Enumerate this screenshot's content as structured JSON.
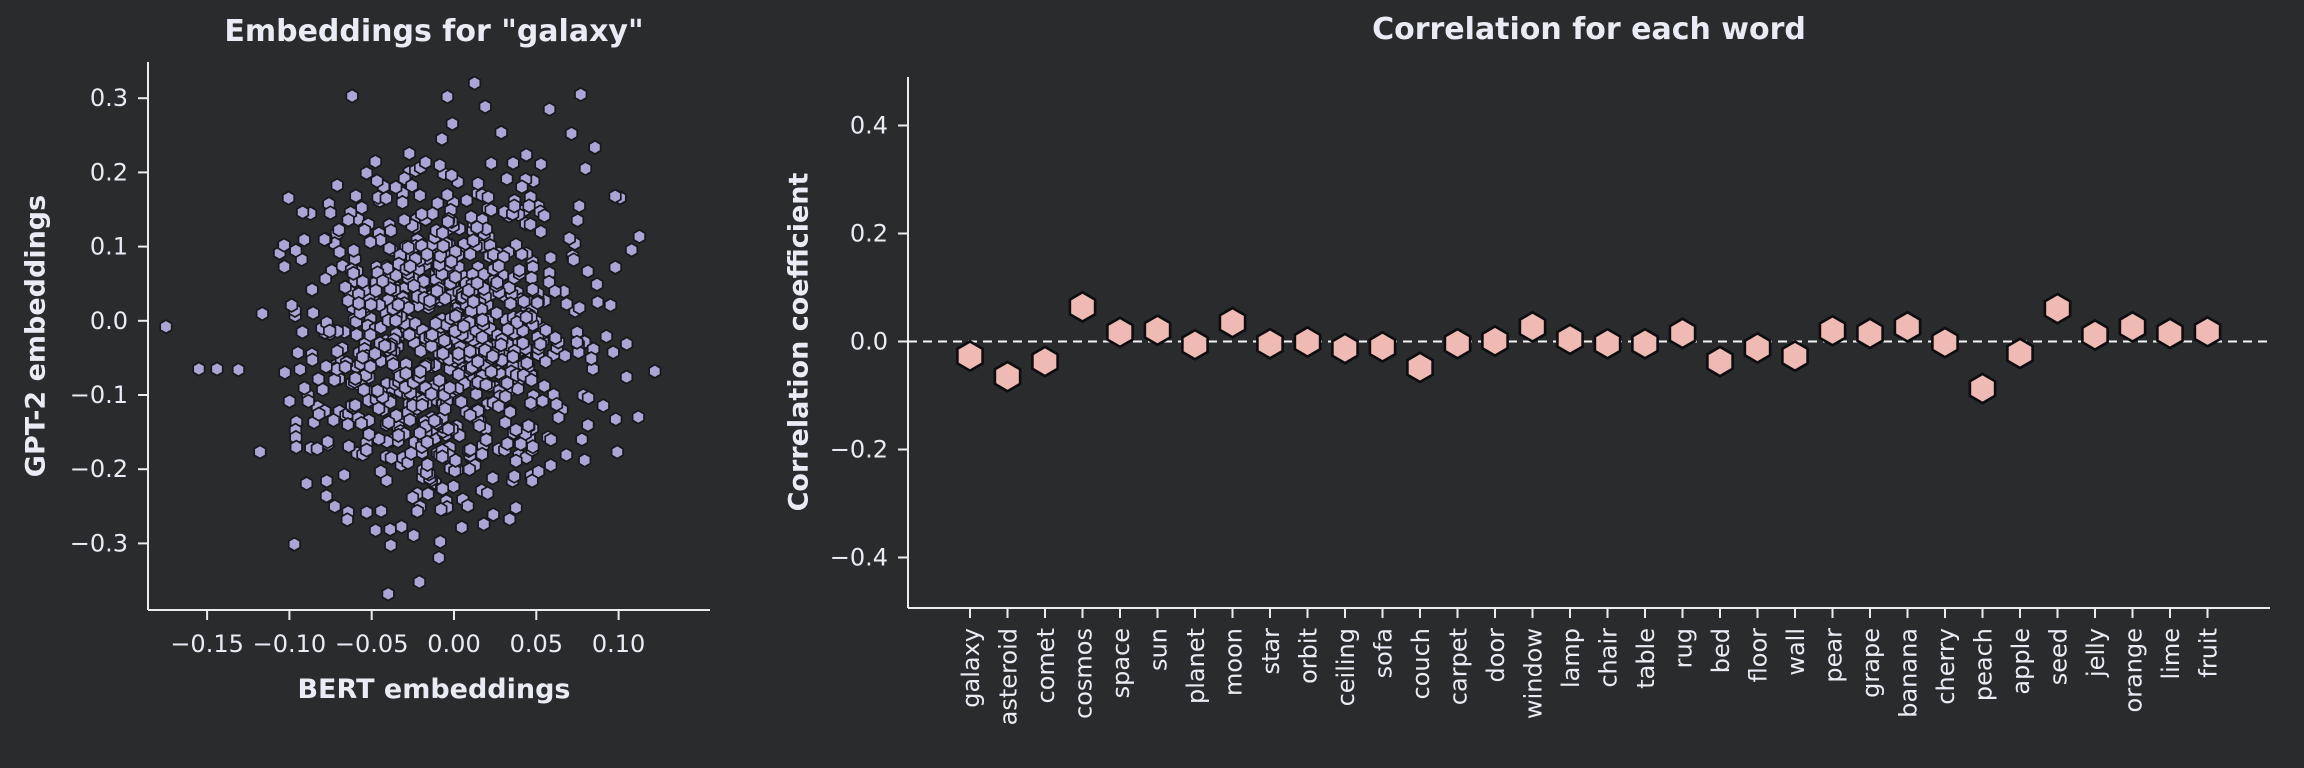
{
  "figure": {
    "background": "#2a2b2c",
    "text_color": "#e9ecf4",
    "axis_color": "#ebecef"
  },
  "chart_data": [
    {
      "type": "scatter",
      "title": "Embeddings for \"galaxy\"",
      "xlabel": "BERT embeddings",
      "ylabel": "GPT-2 embeddings",
      "xticks": [
        -0.15,
        -0.1,
        -0.05,
        0.0,
        0.05,
        0.1
      ],
      "xtick_labels": [
        "−0.15",
        "−0.10",
        "−0.05",
        "0.00",
        "0.05",
        "0.10"
      ],
      "yticks": [
        0.3,
        0.2,
        0.1,
        0.0,
        -0.1,
        -0.2,
        -0.3
      ],
      "ytick_labels": [
        "0.3",
        "0.2",
        "0.1",
        "0.0",
        "−0.1",
        "−0.2",
        "−0.3"
      ],
      "xlim": [
        -0.186,
        0.155
      ],
      "ylim": [
        -0.39,
        0.35
      ],
      "grid": false,
      "marker": {
        "shape": "hexagon",
        "fill": "#a9a6d6",
        "stroke": "#17171c",
        "radius": 6.6
      },
      "distribution": {
        "n": 940,
        "seed": 7,
        "mean": [
          -0.006,
          -0.02
        ],
        "std": [
          0.043,
          0.118
        ],
        "note": "dense gaussian blob of ~1000 embedding dimension points"
      },
      "outliers": [
        [
          -0.175,
          -0.008
        ],
        [
          -0.155,
          -0.065
        ],
        [
          -0.144,
          -0.065
        ],
        [
          -0.131,
          -0.066
        ],
        [
          0.122,
          -0.068
        ],
        [
          -0.04,
          -0.368
        ],
        [
          -0.021,
          -0.352
        ],
        [
          0.077,
          0.305
        ],
        [
          -0.004,
          0.302
        ],
        [
          0.058,
          0.285
        ]
      ]
    },
    {
      "type": "scatter",
      "title": "Correlation for each word",
      "xlabel": "",
      "ylabel": "Correlation coefficient",
      "yticks": [
        0.4,
        0.2,
        0.0,
        -0.2,
        -0.4
      ],
      "ytick_labels": [
        "0.4",
        "0.2",
        "0.0",
        "−0.2",
        "−0.4"
      ],
      "ylim": [
        -0.49,
        0.49
      ],
      "grid": false,
      "zero_line": {
        "style": "dashed",
        "color": "#f4f4f6",
        "y": 0.0
      },
      "marker": {
        "shape": "hexagon",
        "fill": "#efb9b4",
        "stroke": "#0d0d0f",
        "radius": 14.6
      },
      "categories": [
        "galaxy",
        "asteroid",
        "comet",
        "cosmos",
        "space",
        "sun",
        "planet",
        "moon",
        "star",
        "orbit",
        "ceiling",
        "sofa",
        "couch",
        "carpet",
        "door",
        "window",
        "lamp",
        "chair",
        "table",
        "rug",
        "bed",
        "floor",
        "wall",
        "pear",
        "grape",
        "banana",
        "cherry",
        "peach",
        "apple",
        "seed",
        "jelly",
        "orange",
        "lime",
        "fruit"
      ],
      "values": [
        -0.027,
        -0.065,
        -0.037,
        0.064,
        0.017,
        0.021,
        -0.006,
        0.035,
        -0.004,
        -0.001,
        -0.013,
        -0.01,
        -0.048,
        -0.004,
        0.001,
        0.027,
        0.004,
        -0.004,
        -0.004,
        0.015,
        -0.037,
        -0.012,
        -0.027,
        0.02,
        0.015,
        0.027,
        -0.002,
        -0.087,
        -0.022,
        0.061,
        0.012,
        0.027,
        0.015,
        0.018
      ]
    }
  ]
}
